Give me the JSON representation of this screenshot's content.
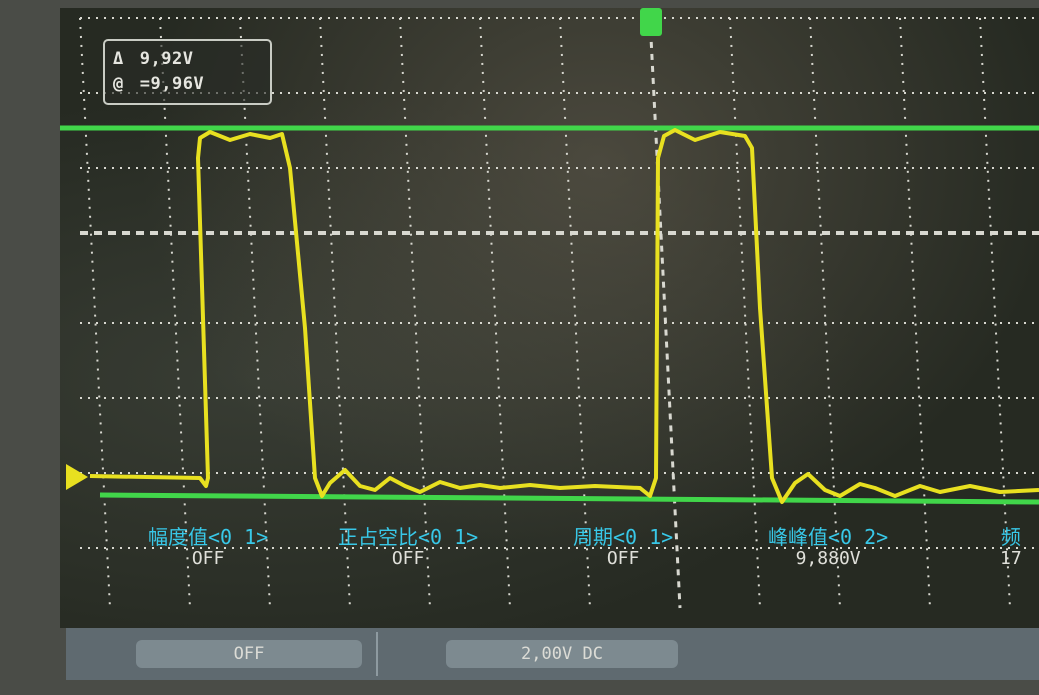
{
  "readout": {
    "delta_symbol": "Δ",
    "delta_value": "9,92V",
    "at_symbol": "@",
    "at_value": "=9,96V"
  },
  "measurements": [
    {
      "label": "幅度值<0 1>",
      "value": "OFF"
    },
    {
      "label": "正占空比<0 1>",
      "value": "OFF"
    },
    {
      "label": "周期<0 1>",
      "value": "OFF"
    },
    {
      "label": "峰峰值<0 2>",
      "value": "9,880V"
    },
    {
      "label": "频",
      "value": "17"
    }
  ],
  "softkeys": {
    "left": {
      "label": "",
      "value": "OFF"
    },
    "right": {
      "label": "",
      "value": "2,00V DC"
    }
  },
  "colors": {
    "trace": "#e8e020",
    "cursor": "#41d64a",
    "measure_label": "#38c8e8"
  }
}
